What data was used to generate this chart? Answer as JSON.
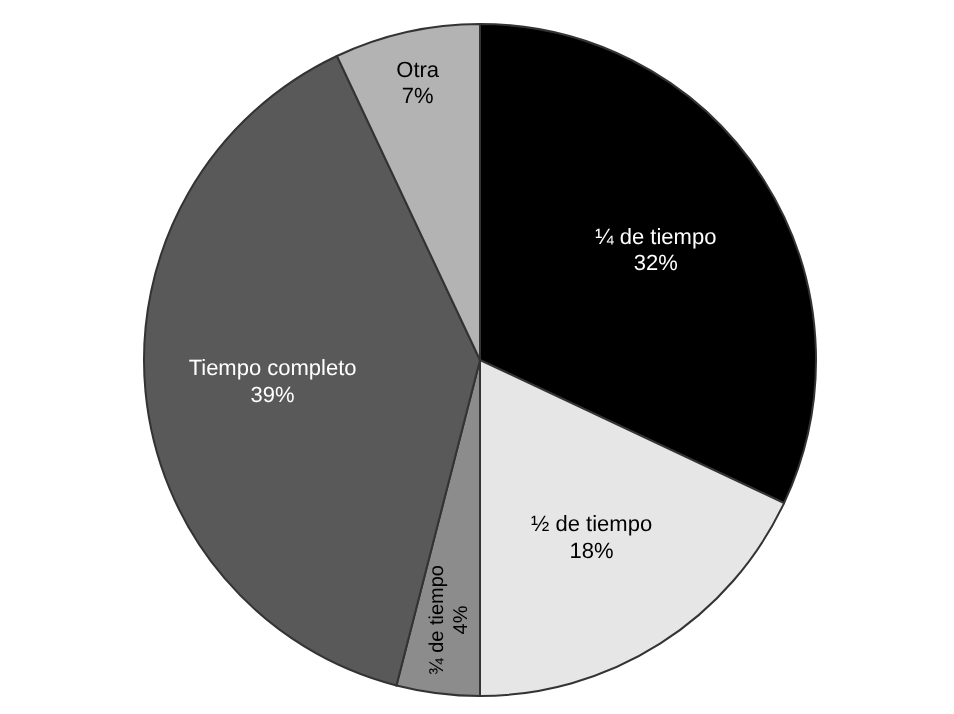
{
  "chart_data": {
    "type": "pie",
    "categories": [
      "¼ de tiempo",
      "½ de tiempo",
      "¾ de tiempo",
      "Tiempo completo",
      "Otra"
    ],
    "values": [
      32,
      18,
      4,
      39,
      7
    ],
    "value_labels": [
      "32%",
      "18%",
      "4%",
      "39%",
      "7%"
    ],
    "colors": [
      "#000000",
      "#e6e6e6",
      "#8c8c8c",
      "#595959",
      "#b3b3b3"
    ]
  }
}
